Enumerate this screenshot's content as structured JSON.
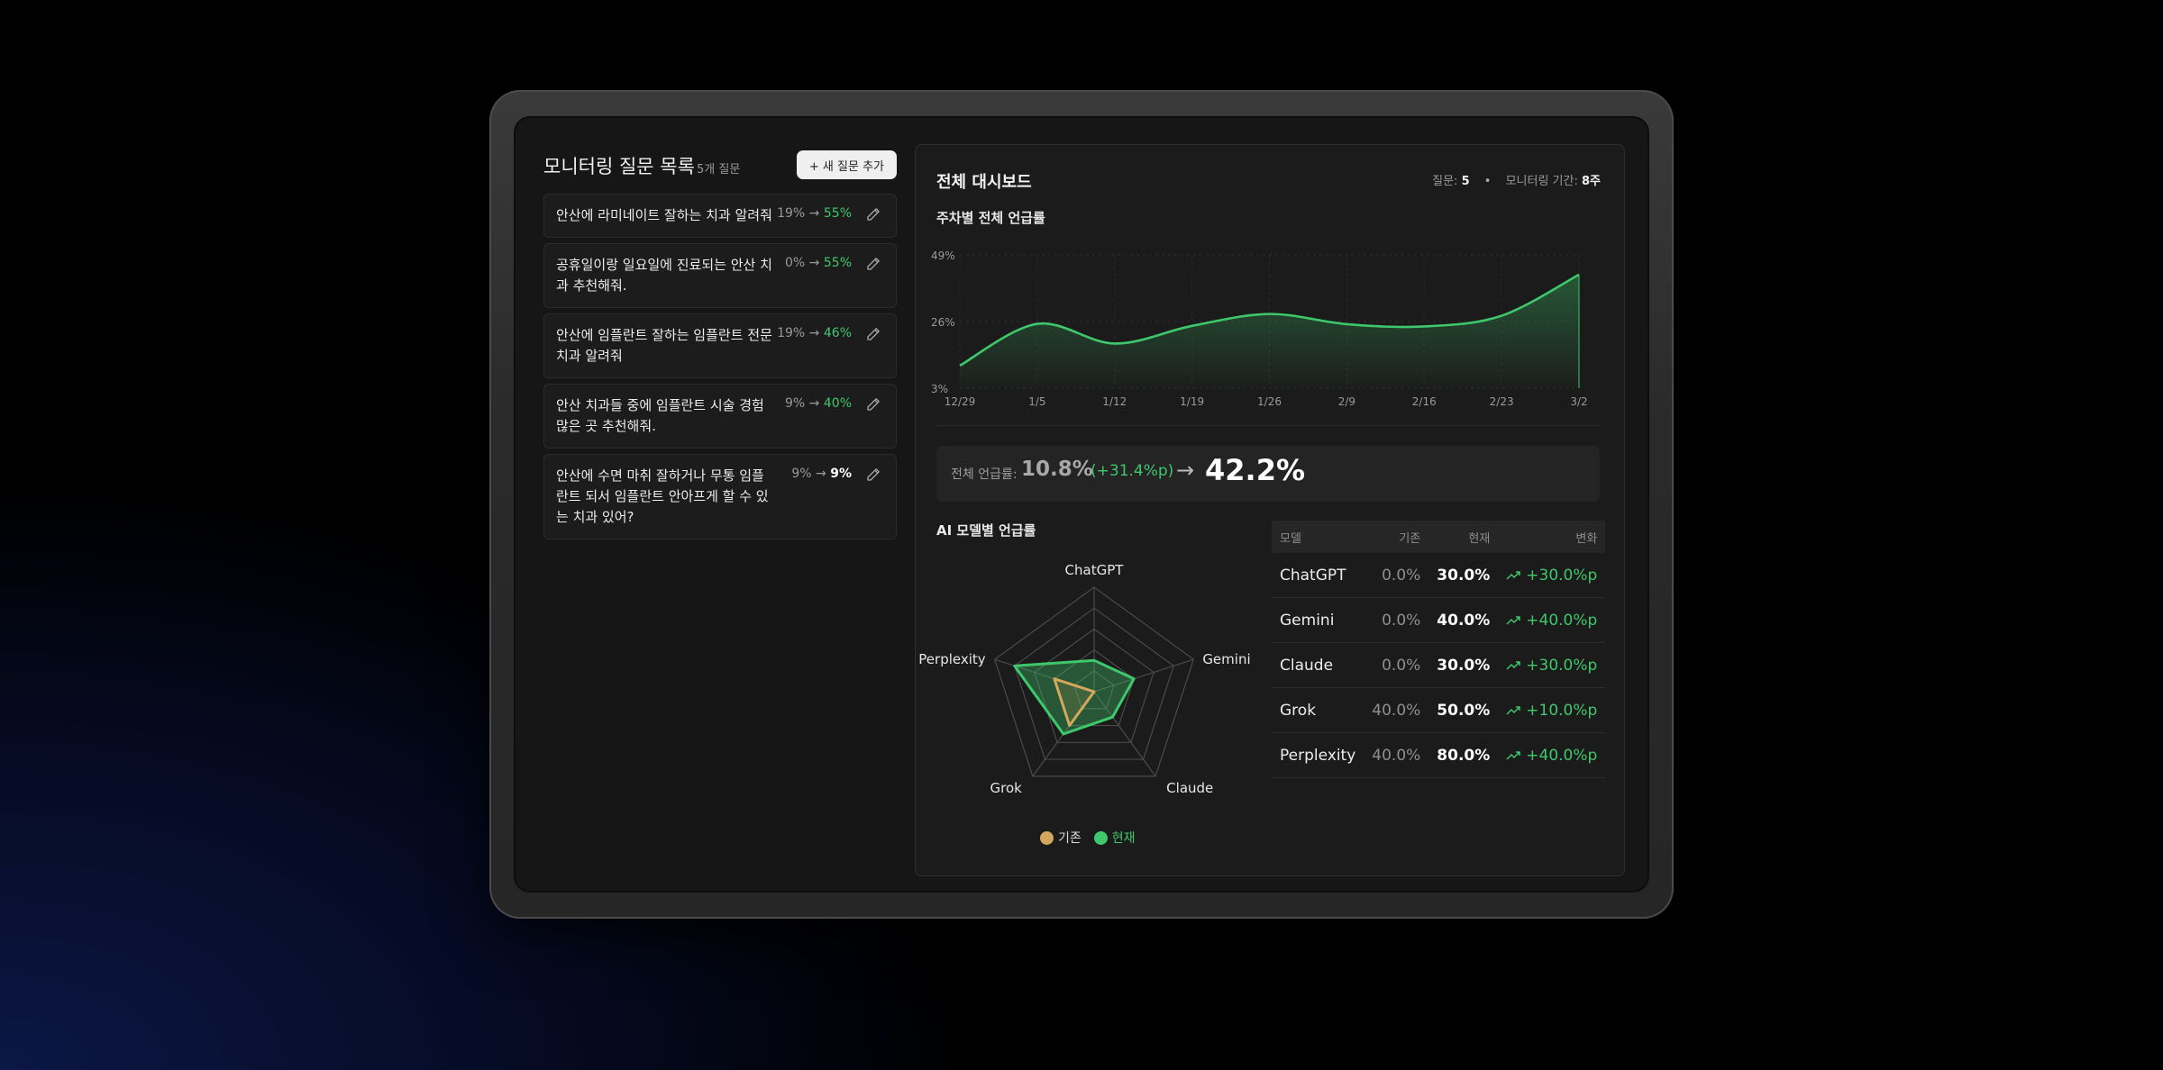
{
  "left": {
    "title": "모니터링 질문 목록",
    "count": "5개 질문",
    "add_button": "+ 새 질문 추가",
    "questions": [
      {
        "text": "안산에 라미네이트 잘하는 치과 알려줘",
        "from": "19%",
        "to": "55%"
      },
      {
        "text": "공휴일이랑 일요일에 진료되는 안산 치과 추천해줘.",
        "from": "0%",
        "to": "55%"
      },
      {
        "text": "안산에 임플란트 잘하는 임플란트 전문 치과 알려줘",
        "from": "19%",
        "to": "46%"
      },
      {
        "text": "안산 치과들 중에 임플란트 시술 경험 많은 곳 추천해줘.",
        "from": "9%",
        "to": "40%"
      },
      {
        "text": "안산에 수면 마취 잘하거나 무통 임플란트 되서 임플란트 안아프게 할 수 있는 치과 있어?",
        "from": "9%",
        "to": "9%"
      }
    ]
  },
  "dashboard": {
    "title": "전체 대시보드",
    "questions_label": "질문:",
    "questions_value": "5",
    "period_label": "모니터링 기간:",
    "period_value": "8주",
    "line_chart_title": "주차별 전체 언급률",
    "summary_label": "전체 언급률:",
    "summary_from": "10.8%",
    "summary_delta": "(+31.4%p)",
    "summary_arrow": "→",
    "summary_to": "42.2%",
    "radar_title": "AI 모델별 언급률",
    "legend_base": "기존",
    "legend_current": "현재",
    "table_headers": {
      "model": "모델",
      "base": "기존",
      "current": "현재",
      "change": "변화"
    },
    "models": [
      {
        "name": "ChatGPT",
        "base": "0.0%",
        "current": "30.0%",
        "change": "+30.0%p"
      },
      {
        "name": "Gemini",
        "base": "0.0%",
        "current": "40.0%",
        "change": "+40.0%p"
      },
      {
        "name": "Claude",
        "base": "0.0%",
        "current": "30.0%",
        "change": "+30.0%p"
      },
      {
        "name": "Grok",
        "base": "40.0%",
        "current": "50.0%",
        "change": "+10.0%p"
      },
      {
        "name": "Perplexity",
        "base": "40.0%",
        "current": "80.0%",
        "change": "+40.0%p"
      }
    ]
  },
  "colors": {
    "accent": "#3ec86b",
    "base": "#d4a85c",
    "panel": "#1b1b1b"
  },
  "chart_data": [
    {
      "type": "area",
      "title": "주차별 전체 언급률",
      "x": [
        "12/29",
        "1/5",
        "1/12",
        "1/19",
        "1/26",
        "2/9",
        "2/16",
        "2/23",
        "3/2"
      ],
      "y": [
        10.8,
        25.2,
        18.4,
        24.5,
        28.6,
        25.1,
        24.3,
        28.0,
        42.2
      ],
      "ylim": [
        3,
        49
      ],
      "yticks": [
        "49%",
        "26%",
        "3%"
      ],
      "grid": true
    },
    {
      "type": "radar",
      "title": "AI 모델별 언급률",
      "categories": [
        "ChatGPT",
        "Gemini",
        "Claude",
        "Grok",
        "Perplexity"
      ],
      "series": [
        {
          "name": "기존",
          "values": [
            0,
            0,
            0,
            40,
            40
          ]
        },
        {
          "name": "현재",
          "values": [
            30,
            40,
            30,
            50,
            80
          ]
        }
      ],
      "rmax": 100,
      "legend": "bottom"
    }
  ]
}
